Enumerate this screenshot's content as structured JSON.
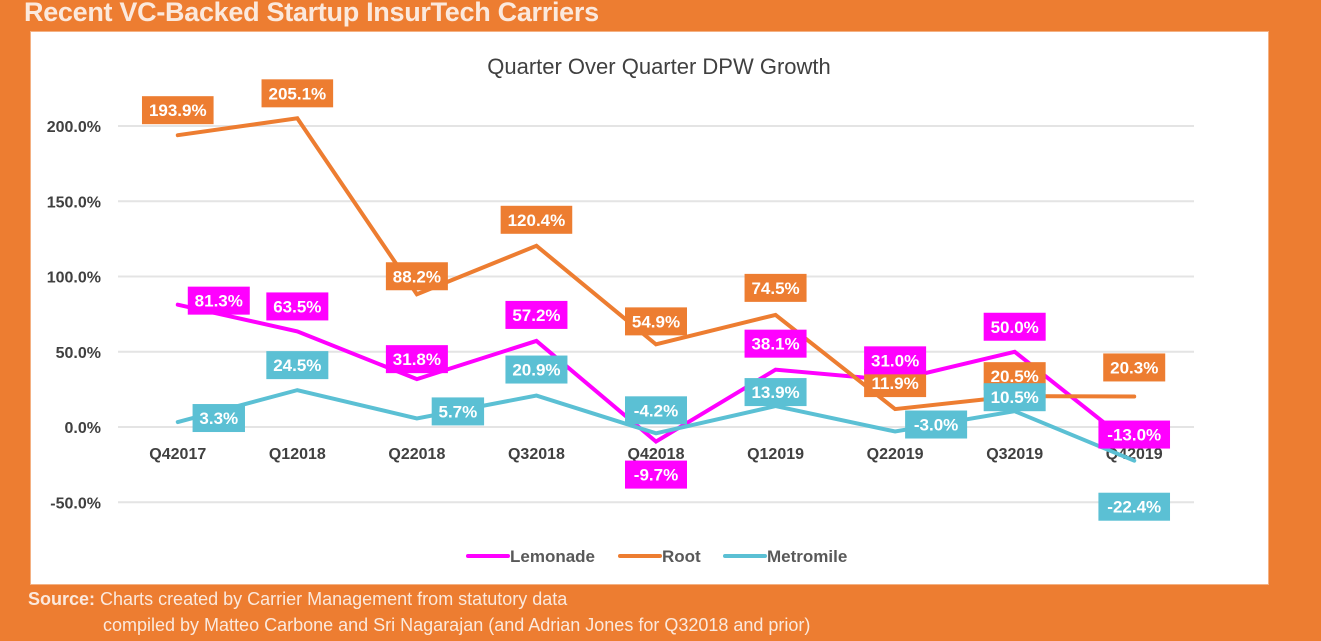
{
  "page": {
    "title": "Recent VC-Backed Startup InsurTech Carriers",
    "source_label": "Source:",
    "source_line1": "Charts created by Carrier Management from statutory data",
    "source_line2": "compiled by Matteo Carbone and Sri Nagarajan (and Adrian Jones for Q32018 and prior)",
    "background_color": "#ED7D31"
  },
  "chart_data": {
    "type": "line",
    "title": "Quarter Over Quarter DPW Growth",
    "xlabel": "",
    "ylabel": "",
    "categories": [
      "Q42017",
      "Q12018",
      "Q22018",
      "Q32018",
      "Q42018",
      "Q12019",
      "Q22019",
      "Q32019",
      "Q42019"
    ],
    "ylim": [
      -50,
      200
    ],
    "yticks": [
      -50,
      0,
      50,
      100,
      150,
      200
    ],
    "ytick_labels": [
      "-50.0%",
      "0.0%",
      "50.0%",
      "100.0%",
      "150.0%",
      "200.0%"
    ],
    "grid": true,
    "legend_position": "bottom-center",
    "series": [
      {
        "name": "Lemonade",
        "color": "#FF00FF",
        "values": [
          81.3,
          63.5,
          31.8,
          57.2,
          -9.7,
          38.1,
          31.0,
          50.0,
          -13.0
        ],
        "labels": [
          "81.3%",
          "63.5%",
          "31.8%",
          "57.2%",
          "-9.7%",
          "38.1%",
          "31.0%",
          "50.0%",
          "-13.0%"
        ]
      },
      {
        "name": "Root",
        "color": "#ED7D31",
        "values": [
          193.9,
          205.1,
          88.2,
          120.4,
          54.9,
          74.5,
          11.9,
          20.5,
          20.3
        ],
        "labels": [
          "193.9%",
          "205.1%",
          "88.2%",
          "120.4%",
          "54.9%",
          "74.5%",
          "11.9%",
          "20.5%",
          "20.3%"
        ]
      },
      {
        "name": "Metromile",
        "color": "#5BC0D4",
        "values": [
          3.3,
          24.5,
          5.7,
          20.9,
          -4.2,
          13.9,
          -3.0,
          10.5,
          -22.4
        ],
        "labels": [
          "3.3%",
          "24.5%",
          "5.7%",
          "20.9%",
          "-4.2%",
          "13.9%",
          "-3.0%",
          "10.5%",
          "-22.4%"
        ]
      }
    ]
  }
}
